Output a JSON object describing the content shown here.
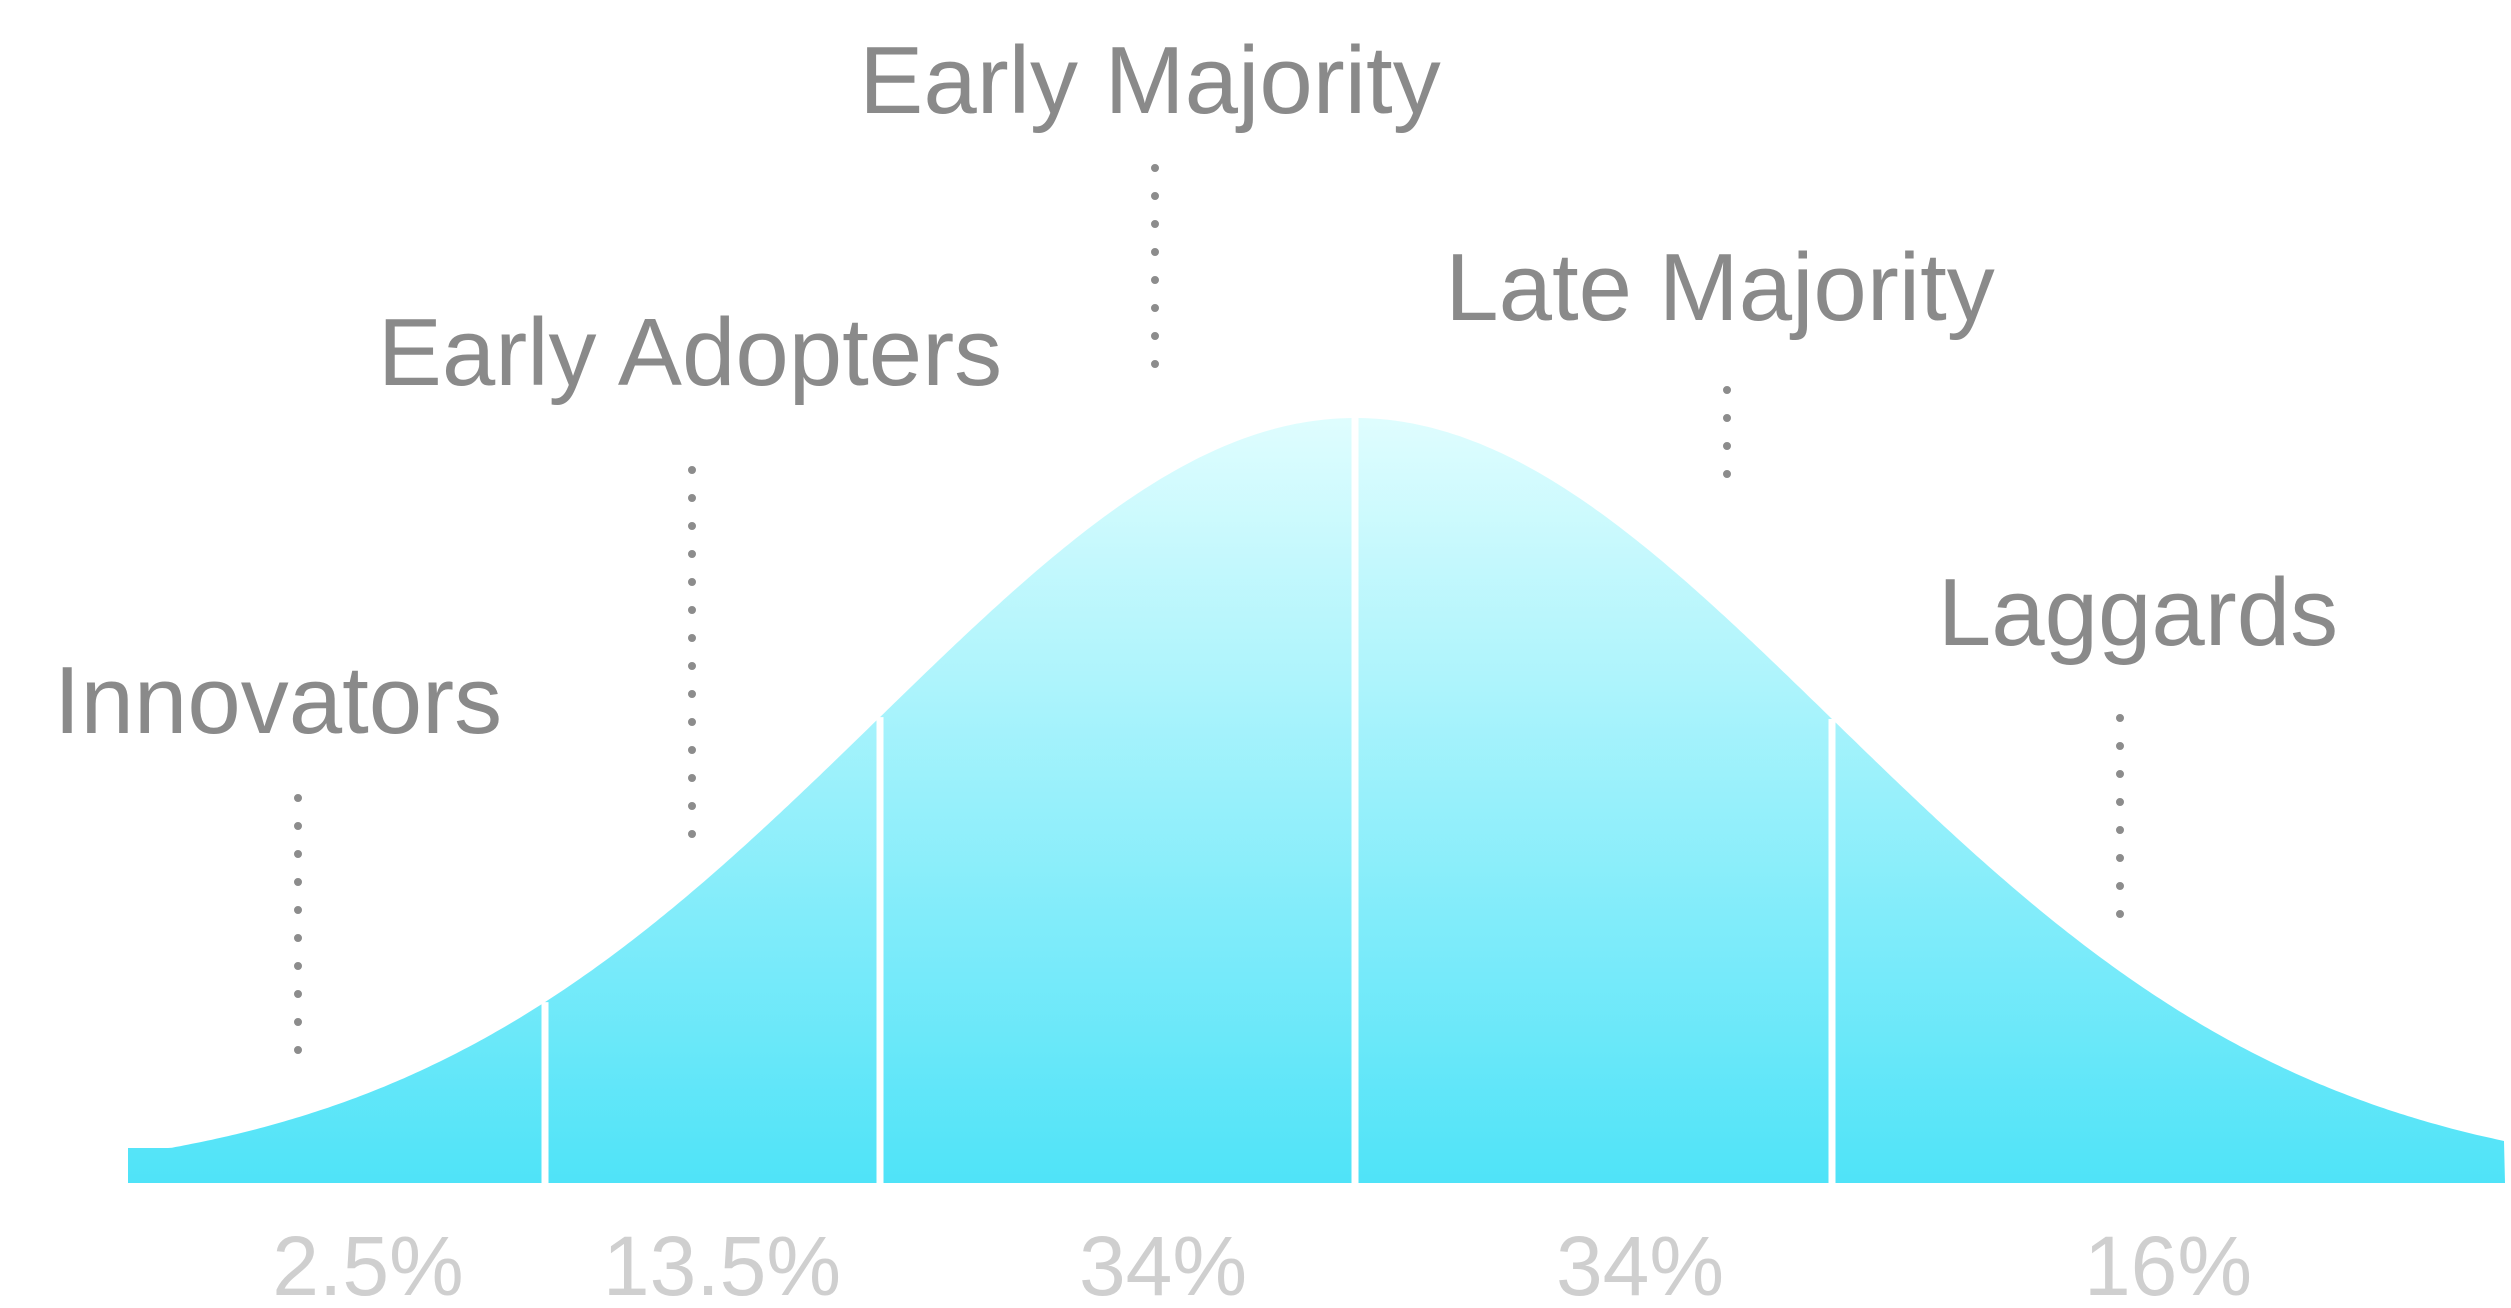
{
  "segments": [
    {
      "label": "Innovators",
      "percent": "2.5%"
    },
    {
      "label": "Early Adopters",
      "percent": "13.5%"
    },
    {
      "label": "Early Majority",
      "percent": "34%"
    },
    {
      "label": "Late Majority",
      "percent": "34%"
    },
    {
      "label": "Laggards",
      "percent": "16%"
    }
  ],
  "colors": {
    "curve_top": "#dffdfe",
    "curve_bottom": "#4fe3f8",
    "label_text": "#8a8a8a",
    "percent_text": "#cfcfcf",
    "leader_dots": "#8c8c8c"
  }
}
